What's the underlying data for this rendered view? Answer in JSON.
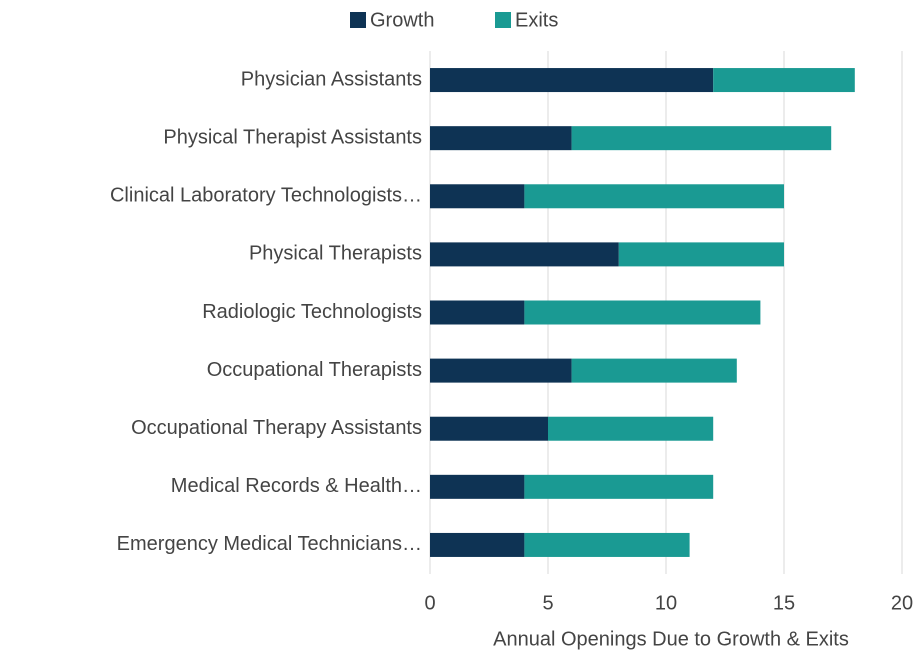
{
  "chart_data": {
    "type": "stacked_bar_horizontal",
    "categories": [
      "Physician Assistants",
      "Physical Therapist Assistants",
      "Clinical Laboratory Technologists…",
      "Physical Therapists",
      "Radiologic Technologists",
      "Occupational Therapists",
      "Occupational Therapy Assistants",
      "Medical Records & Health…",
      "Emergency Medical Technicians…"
    ],
    "series": [
      {
        "name": "Growth",
        "color": "#0e3354",
        "values": [
          12,
          6,
          4,
          8,
          4,
          6,
          5,
          4,
          4
        ]
      },
      {
        "name": "Exits",
        "color": "#1a9a93",
        "values": [
          6,
          11,
          11,
          7,
          10,
          7,
          7,
          8,
          7
        ]
      }
    ],
    "x_label": "Annual Openings Due to Growth & Exits",
    "xlim": [
      0,
      20
    ],
    "xticks": [
      0,
      5,
      10,
      15,
      20
    ],
    "grid": true,
    "legend": "top"
  }
}
